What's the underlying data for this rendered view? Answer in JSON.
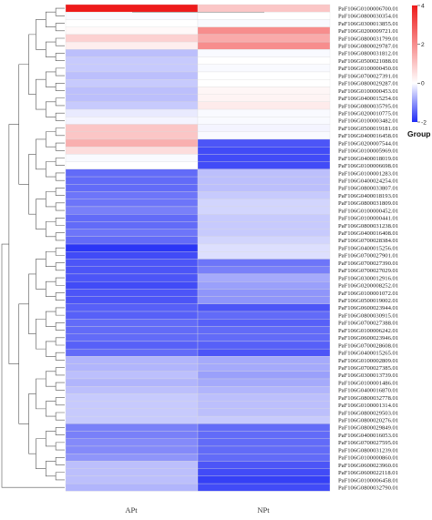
{
  "chart_data": {
    "type": "heatmap",
    "columns": [
      "APt",
      "NPt"
    ],
    "rows": [
      "PaF106G0100006700.01",
      "PaF106G0800030354.01",
      "PaF106G0300013855.01",
      "PaF106G0200009721.01",
      "PaF106G0800031799.01",
      "PaF106G0800029787.01",
      "PaF106G0800031812.01",
      "PaF106G0500021088.01",
      "PaF106G0100000450.01",
      "PaF106G0700027391.01",
      "PaF106G0800029287.01",
      "PaF106G0100000453.01",
      "PaF106G0400015254.01",
      "PaF106G0800035795.01",
      "PaF106G0200010775.01",
      "PaF106G0100003482.01",
      "PaF106G0500019181.01",
      "PaF106G0400016458.01",
      "PaF106G0200007544.01",
      "PaF106G0100005969.01",
      "PaF106G0400018019.01",
      "PaF106G0100006698.01",
      "PaF106G0100001283.01",
      "PaF106G0400024254.01",
      "PaF106G0800033807.01",
      "PaF106G0400018193.01",
      "PaF106G0800031809.01",
      "PaF106G0100000452.01",
      "PaF106G0100000441.01",
      "PaF106G0800031238.01",
      "PaF106G0400016408.01",
      "PaF106G0700028384.01",
      "PaF106G0400015256.01",
      "PaF106G0700027901.01",
      "PaF106G0700027390.01",
      "PaF106G0700027029.01",
      "PaF106G0300012916.01",
      "PaF106G0200008252.01",
      "PaF106G0100001072.01",
      "PaF106G0500019002.01",
      "PaF106G0600023944.01",
      "PaF106G0800030915.01",
      "PaF106G0700027388.01",
      "PaF106G0100006242.01",
      "PaF106G0600023946.01",
      "PaF106G0700028608.01",
      "PaF106G0400015265.01",
      "PaF106G0100002809.01",
      "PaF106G0700027385.01",
      "PaF106G0300013739.01",
      "PaF106G0100001486.01",
      "PaF106G0400016870.01",
      "PaF106G0800032778.01",
      "PaF106G0100001314.01",
      "PaF106G0800029503.01",
      "PaF106G0800020276.01",
      "PaF106G0800029849.01",
      "PaF106G0400016053.01",
      "PaF106G0700027595.01",
      "PaF106G0800031239.01",
      "PaF106G0100000860.01",
      "PaF106G0600023960.01",
      "PaF106G0600022118.01",
      "PaF106G0100006458.01",
      "PaF106G0800032790.01"
    ],
    "values": [
      [
        4.0,
        1.0
      ],
      [
        -0.05,
        0.0
      ],
      [
        0.0,
        -0.05
      ],
      [
        0.1,
        2.0
      ],
      [
        0.8,
        1.5
      ],
      [
        0.3,
        2.0
      ],
      [
        -0.6,
        -0.05
      ],
      [
        -0.5,
        0.0
      ],
      [
        -0.5,
        -0.05
      ],
      [
        -0.6,
        0.0
      ],
      [
        -0.5,
        0.0
      ],
      [
        -0.6,
        0.15
      ],
      [
        -0.6,
        0.2
      ],
      [
        -0.5,
        0.35
      ],
      [
        -0.2,
        -0.05
      ],
      [
        -0.1,
        -0.05
      ],
      [
        1.0,
        -0.1
      ],
      [
        1.0,
        -0.05
      ],
      [
        1.4,
        -1.6
      ],
      [
        0.6,
        -1.7
      ],
      [
        -0.05,
        -1.7
      ],
      [
        0.0,
        -1.7
      ],
      [
        -1.4,
        -0.6
      ],
      [
        -1.4,
        -0.6
      ],
      [
        -1.4,
        -0.6
      ],
      [
        -1.3,
        -0.5
      ],
      [
        -1.3,
        -0.4
      ],
      [
        -1.2,
        -0.4
      ],
      [
        -1.4,
        -0.5
      ],
      [
        -1.4,
        -0.5
      ],
      [
        -1.3,
        -0.5
      ],
      [
        -1.4,
        -0.4
      ],
      [
        -1.9,
        -0.3
      ],
      [
        -1.7,
        -0.3
      ],
      [
        -1.6,
        -1.3
      ],
      [
        -1.6,
        -1.2
      ],
      [
        -1.6,
        -0.8
      ],
      [
        -1.7,
        -0.9
      ],
      [
        -1.6,
        -1.0
      ],
      [
        -1.6,
        -1.0
      ],
      [
        -1.5,
        -1.6
      ],
      [
        -1.5,
        -1.4
      ],
      [
        -1.4,
        -1.5
      ],
      [
        -1.4,
        -1.4
      ],
      [
        -1.4,
        -1.4
      ],
      [
        -1.5,
        -1.5
      ],
      [
        -1.4,
        -1.6
      ],
      [
        -0.7,
        -0.8
      ],
      [
        -0.7,
        -0.8
      ],
      [
        -0.6,
        -0.9
      ],
      [
        -0.7,
        -0.8
      ],
      [
        -0.6,
        -0.7
      ],
      [
        -0.5,
        -0.6
      ],
      [
        -0.5,
        -0.6
      ],
      [
        -0.5,
        -0.6
      ],
      [
        -0.5,
        -0.5
      ],
      [
        -1.2,
        -1.4
      ],
      [
        -1.2,
        -1.4
      ],
      [
        -1.1,
        -1.4
      ],
      [
        -1.1,
        -1.4
      ],
      [
        -1.0,
        -1.4
      ],
      [
        -0.6,
        -1.6
      ],
      [
        -0.6,
        -1.7
      ],
      [
        -0.6,
        -1.8
      ],
      [
        -0.7,
        -1.7
      ]
    ],
    "legend": {
      "title": "Group",
      "ticks": [
        4,
        2,
        0,
        -2
      ],
      "range": [
        -2,
        4
      ],
      "colors": {
        "low": "#1f2bf5",
        "mid": "#ffffff",
        "high": "#ee1b1b"
      }
    }
  }
}
